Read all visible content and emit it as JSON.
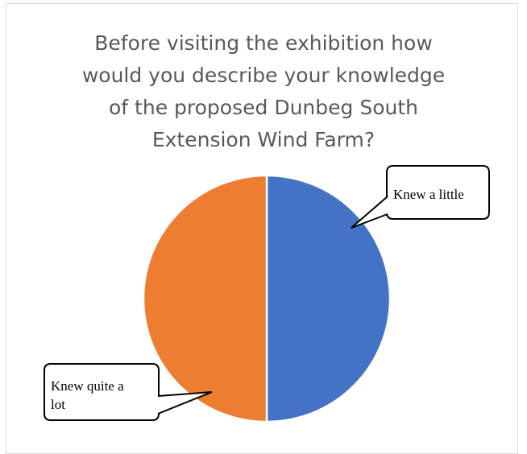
{
  "chart_data": {
    "type": "pie",
    "title_lines": [
      "Before visiting the exhibition how",
      "would you describe your knowledge",
      "of the proposed Dunbeg South",
      "Extension Wind Farm?"
    ],
    "slices": [
      {
        "label": "Knew a little",
        "value": 50,
        "color": "#4472c4",
        "label_lines": [
          "Knew a little"
        ]
      },
      {
        "label": "Knew quite a lot",
        "value": 50,
        "color": "#ed7d31",
        "label_lines": [
          "Knew quite a",
          "lot"
        ]
      }
    ]
  }
}
